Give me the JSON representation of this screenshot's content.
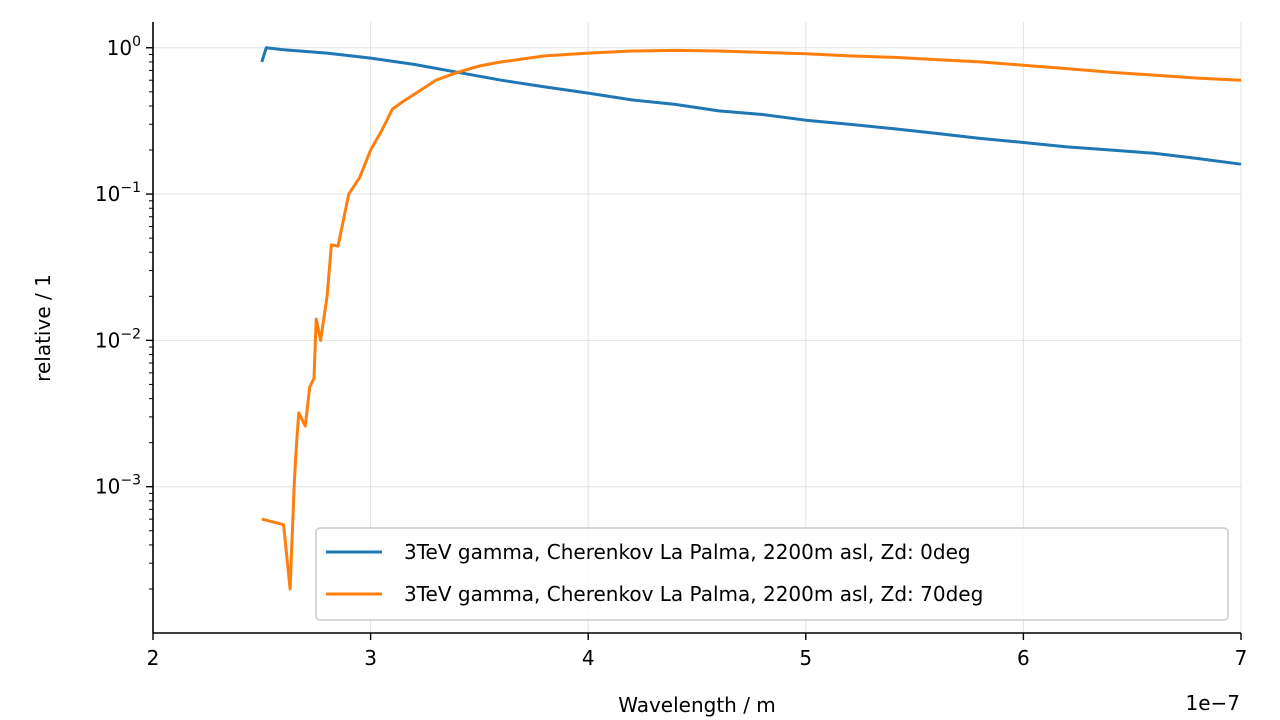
{
  "chart_data": {
    "type": "line",
    "title": "",
    "xlabel": "Wavelength / m",
    "ylabel": "relative / 1",
    "x_offset_label": "1e−7",
    "xlim": [
      2,
      7
    ],
    "ylim": [
      0.0001,
      1.5
    ],
    "yscale": "log",
    "grid": true,
    "legend_position": "lower-right",
    "x_ticks": [
      "2",
      "3",
      "4",
      "5",
      "6",
      "7"
    ],
    "y_ticks": [
      {
        "base": "10",
        "exp": "0"
      },
      {
        "base": "10",
        "exp": "−1"
      },
      {
        "base": "10",
        "exp": "−2"
      },
      {
        "base": "10",
        "exp": "−3"
      }
    ],
    "series": [
      {
        "name": "3TeV gamma, Cherenkov La Palma, 2200m asl, Zd: 0deg",
        "color": "#1f77b4",
        "x": [
          2.5,
          2.52,
          2.6,
          2.8,
          3.0,
          3.2,
          3.4,
          3.6,
          3.8,
          4.0,
          4.2,
          4.4,
          4.6,
          4.8,
          5.0,
          5.2,
          5.4,
          5.6,
          5.8,
          6.0,
          6.2,
          6.4,
          6.6,
          6.8,
          7.0
        ],
        "y": [
          0.8,
          1.0,
          0.97,
          0.92,
          0.85,
          0.77,
          0.68,
          0.6,
          0.54,
          0.49,
          0.44,
          0.41,
          0.37,
          0.35,
          0.32,
          0.3,
          0.28,
          0.26,
          0.24,
          0.225,
          0.21,
          0.2,
          0.19,
          0.175,
          0.16
        ]
      },
      {
        "name": "3TeV gamma, Cherenkov La Palma, 2200m asl, Zd: 70deg",
        "color": "#ff7f0e",
        "x": [
          2.5,
          2.6,
          2.63,
          2.65,
          2.66,
          2.67,
          2.7,
          2.72,
          2.74,
          2.75,
          2.77,
          2.8,
          2.82,
          2.85,
          2.9,
          2.95,
          3.0,
          3.05,
          3.1,
          3.15,
          3.2,
          3.3,
          3.4,
          3.5,
          3.6,
          3.8,
          4.0,
          4.2,
          4.4,
          4.6,
          4.8,
          5.0,
          5.2,
          5.4,
          5.6,
          5.8,
          6.0,
          6.2,
          6.4,
          6.6,
          6.8,
          7.0
        ],
        "y": [
          0.0006,
          0.00055,
          0.0002,
          0.0011,
          0.002,
          0.0032,
          0.0026,
          0.0048,
          0.0055,
          0.014,
          0.01,
          0.02,
          0.045,
          0.044,
          0.1,
          0.13,
          0.2,
          0.27,
          0.38,
          0.43,
          0.48,
          0.6,
          0.68,
          0.75,
          0.8,
          0.88,
          0.92,
          0.95,
          0.96,
          0.95,
          0.93,
          0.91,
          0.88,
          0.86,
          0.83,
          0.8,
          0.76,
          0.72,
          0.68,
          0.65,
          0.62,
          0.6
        ]
      }
    ]
  }
}
